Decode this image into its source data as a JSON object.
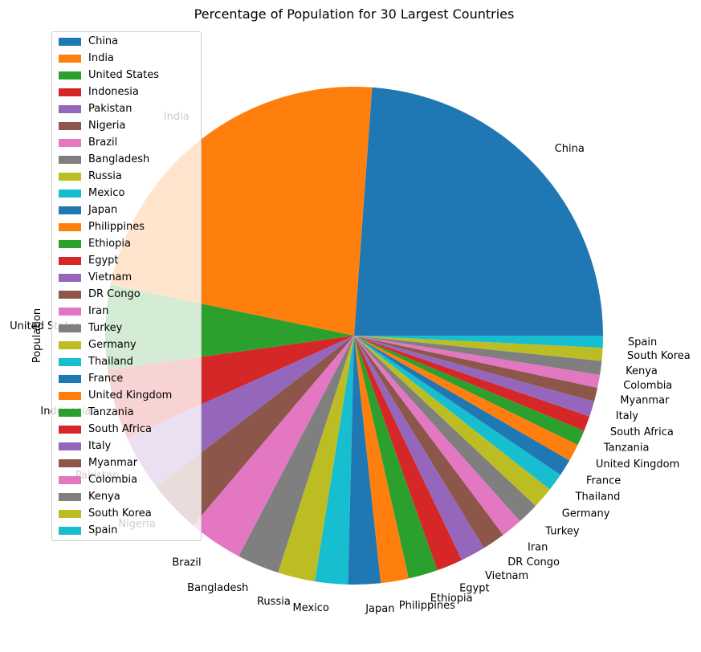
{
  "chart_data": {
    "type": "pie",
    "title": "Percentage of Population for 30 Largest Countries",
    "ylabel": "Population",
    "xlabel": "",
    "legend_position": "upper-left",
    "start_angle_deg": 0,
    "direction": "counterclockwise",
    "categories": [
      "China",
      "India",
      "United States",
      "Indonesia",
      "Pakistan",
      "Nigeria",
      "Brazil",
      "Bangladesh",
      "Russia",
      "Mexico",
      "Japan",
      "Philippines",
      "Ethiopia",
      "Egypt",
      "Vietnam",
      "DR Congo",
      "Iran",
      "Turkey",
      "Germany",
      "Thailand",
      "France",
      "United Kingdom",
      "Tanzania",
      "South Africa",
      "Italy",
      "Myanmar",
      "Colombia",
      "Kenya",
      "South Korea",
      "Spain"
    ],
    "values": [
      1439.3,
      1380.0,
      331.0,
      273.5,
      220.9,
      206.1,
      212.6,
      164.7,
      145.9,
      128.9,
      126.5,
      109.6,
      115.0,
      102.3,
      97.3,
      89.6,
      84.0,
      84.3,
      83.8,
      69.8,
      65.3,
      67.9,
      59.7,
      59.3,
      60.5,
      54.4,
      50.9,
      53.8,
      51.3,
      46.8
    ],
    "colors": [
      "#1f77b4",
      "#ff7f0e",
      "#2ca02c",
      "#d62728",
      "#9467bd",
      "#8c564b",
      "#e377c2",
      "#7f7f7f",
      "#bcbd22",
      "#17becf"
    ]
  }
}
